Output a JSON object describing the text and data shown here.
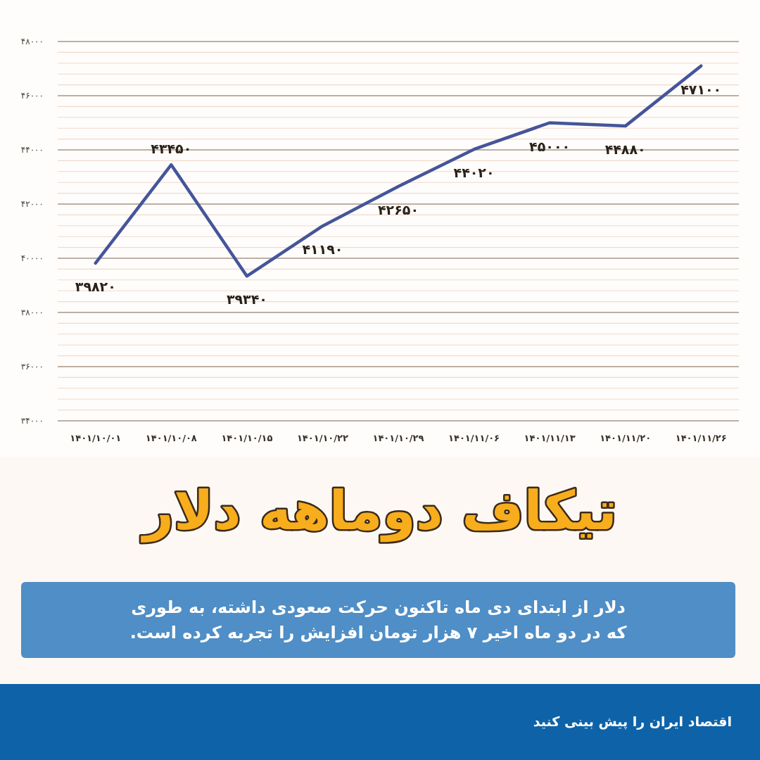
{
  "chart_data": {
    "type": "line",
    "title": "تیکاف دوماهه دلار",
    "subtitle": "دلار از ابتدای دی ماه تاکنون حرکت صعودی داشته، به طوری که در دو ماه اخیر ۷ هزار تومان افزایش را تجربه کرده است.",
    "annotations": [
      "اقتصاد ایران را پیش بینی کنید"
    ],
    "categories": [
      "۱۴۰۱/۱۰/۰۱",
      "۱۴۰۱/۱۰/۰۸",
      "۱۴۰۱/۱۰/۱۵",
      "۱۴۰۱/۱۰/۲۲",
      "۱۴۰۱/۱۰/۲۹",
      "۱۴۰۱/۱۱/۰۶",
      "۱۴۰۱/۱۱/۱۳",
      "۱۴۰۱/۱۱/۲۰",
      "۱۴۰۱/۱۱/۲۶"
    ],
    "values": [
      39820,
      43450,
      39340,
      41190,
      42650,
      44020,
      45000,
      44880,
      47100
    ],
    "value_labels": [
      "۳۹۸۲۰",
      "۴۳۴۵۰",
      "۳۹۳۴۰",
      "۴۱۱۹۰",
      "۴۲۶۵۰",
      "۴۴۰۲۰",
      "۴۵۰۰۰",
      "۴۴۸۸۰",
      "۴۷۱۰۰"
    ],
    "color": "#45559a",
    "ylim": [
      34000,
      48000
    ],
    "yticks": [
      {
        "value": 34000,
        "label": "۳۴۰۰۰"
      },
      {
        "value": 34400,
        "label": null
      },
      {
        "value": 34800,
        "label": null
      },
      {
        "value": 35200,
        "label": null
      },
      {
        "value": 35600,
        "label": null
      },
      {
        "value": 36000,
        "label": "۳۶۰۰۰"
      },
      {
        "value": 36400,
        "label": null
      },
      {
        "value": 36800,
        "label": null
      },
      {
        "value": 37200,
        "label": null
      },
      {
        "value": 37600,
        "label": null
      },
      {
        "value": 38000,
        "label": "۳۸۰۰۰"
      },
      {
        "value": 38400,
        "label": null
      },
      {
        "value": 38800,
        "label": null
      },
      {
        "value": 39200,
        "label": null
      },
      {
        "value": 39600,
        "label": null
      },
      {
        "value": 40000,
        "label": "۴۰۰۰۰"
      },
      {
        "value": 40400,
        "label": null
      },
      {
        "value": 40800,
        "label": null
      },
      {
        "value": 41200,
        "label": null
      },
      {
        "value": 41600,
        "label": null
      },
      {
        "value": 42000,
        "label": "۴۲۰۰۰"
      },
      {
        "value": 42400,
        "label": null
      },
      {
        "value": 42800,
        "label": null
      },
      {
        "value": 43200,
        "label": null
      },
      {
        "value": 43600,
        "label": null
      },
      {
        "value": 44000,
        "label": "۴۴۰۰۰"
      },
      {
        "value": 44400,
        "label": null
      },
      {
        "value": 44800,
        "label": null
      },
      {
        "value": 45200,
        "label": null
      },
      {
        "value": 45600,
        "label": null
      },
      {
        "value": 46000,
        "label": "۴۶۰۰۰"
      },
      {
        "value": 46400,
        "label": null
      },
      {
        "value": 46800,
        "label": null
      },
      {
        "value": 47200,
        "label": null
      },
      {
        "value": 47600,
        "label": null
      },
      {
        "value": 48000,
        "label": "۴۸۰۰۰"
      }
    ],
    "grid": "y"
  }
}
